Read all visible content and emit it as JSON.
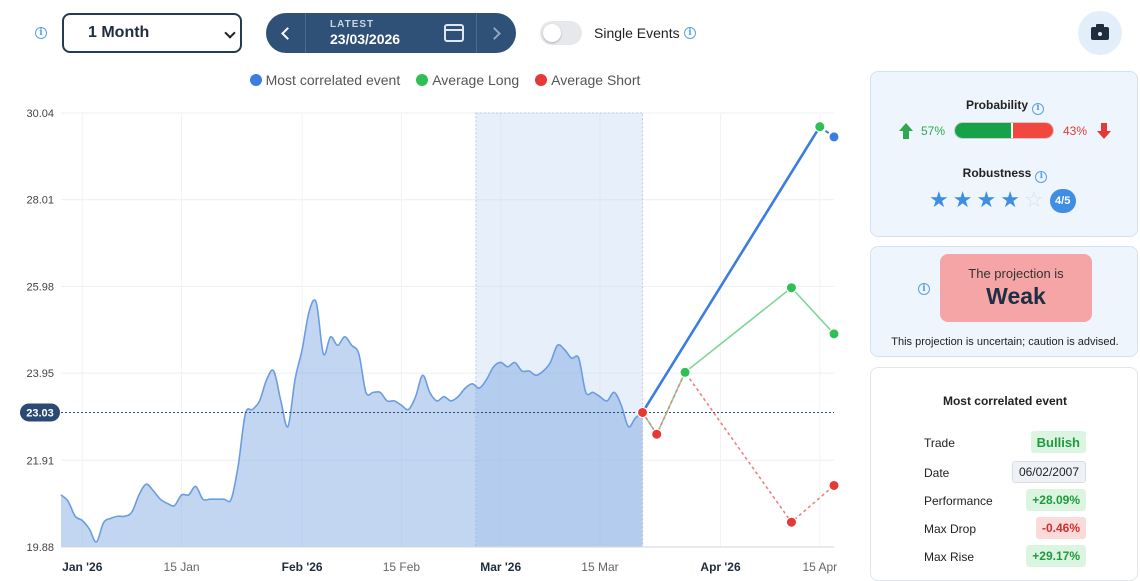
{
  "toolbar": {
    "period": "1 Month",
    "latest_label": "LATEST",
    "latest_date": "23/03/2026",
    "single_events_label": "Single Events"
  },
  "legend": [
    {
      "name": "Most correlated event",
      "color": "#3b7de0"
    },
    {
      "name": "Average Long",
      "color": "#2fbf55"
    },
    {
      "name": "Average Short",
      "color": "#e53935"
    }
  ],
  "probability": {
    "title": "Probability",
    "long_pct_label": "57%",
    "short_pct_label": "43%",
    "long_fraction": 0.57
  },
  "robustness": {
    "title": "Robustness",
    "stars": 4,
    "max": 5,
    "badge": "4/5"
  },
  "projection": {
    "line1": "The projection is",
    "strength": "Weak",
    "note": "This projection is uncertain; caution is advised."
  },
  "correlated_event": {
    "title": "Most correlated event",
    "rows": [
      {
        "label": "Trade",
        "value": "Bullish",
        "style": "bull"
      },
      {
        "label": "Date",
        "value": "06/02/2007",
        "style": "date"
      },
      {
        "label": "Performance",
        "value": "+28.09%",
        "style": "green"
      },
      {
        "label": "Max Drop",
        "value": "-0.46%",
        "style": "red"
      },
      {
        "label": "Max Rise",
        "value": "+29.17%",
        "style": "green"
      }
    ]
  },
  "chart_data": {
    "type": "area",
    "y_ticks": [
      "30.04",
      "28.01",
      "25.98",
      "23.95",
      "21.91",
      "19.88"
    ],
    "y_tick_values": [
      30.04,
      28.01,
      25.98,
      23.95,
      21.91,
      19.88
    ],
    "ylim": [
      19.88,
      30.04
    ],
    "x_ticks": [
      {
        "label": "Jan '26",
        "day": 0,
        "bold": true
      },
      {
        "label": "15 Jan",
        "day": 14,
        "bold": false
      },
      {
        "label": "Feb '26",
        "day": 31,
        "bold": true
      },
      {
        "label": "15 Feb",
        "day": 45,
        "bold": false
      },
      {
        "label": "Mar '26",
        "day": 59,
        "bold": true
      },
      {
        "label": "15 Mar",
        "day": 73,
        "bold": false
      },
      {
        "label": "Apr '26",
        "day": 90,
        "bold": true
      },
      {
        "label": "15 Apr",
        "day": 104,
        "bold": false
      }
    ],
    "xlim": [
      -3,
      106
    ],
    "current_value_label": "23.03",
    "current_value": 23.03,
    "highlight_range": [
      55.5,
      79
    ],
    "history": [
      [
        -3,
        21.1
      ],
      [
        -2,
        20.95
      ],
      [
        -1,
        20.6
      ],
      [
        0,
        20.5
      ],
      [
        1,
        20.3
      ],
      [
        2,
        20.0
      ],
      [
        3,
        20.45
      ],
      [
        4,
        20.55
      ],
      [
        5,
        20.6
      ],
      [
        6,
        20.6
      ],
      [
        7,
        20.7
      ],
      [
        8,
        21.1
      ],
      [
        9,
        21.35
      ],
      [
        10,
        21.2
      ],
      [
        11,
        21.0
      ],
      [
        12,
        20.9
      ],
      [
        13,
        20.85
      ],
      [
        14,
        21.1
      ],
      [
        15,
        21.1
      ],
      [
        16,
        21.3
      ],
      [
        17,
        21.0
      ],
      [
        18,
        21.0
      ],
      [
        19,
        21.0
      ],
      [
        20,
        21.0
      ],
      [
        21,
        21.0
      ],
      [
        22,
        21.8
      ],
      [
        23,
        23.0
      ],
      [
        24,
        23.1
      ],
      [
        25,
        23.3
      ],
      [
        26,
        23.8
      ],
      [
        27,
        24.0
      ],
      [
        28,
        23.3
      ],
      [
        29,
        22.7
      ],
      [
        30,
        23.8
      ],
      [
        31,
        24.5
      ],
      [
        32,
        25.4
      ],
      [
        33,
        25.6
      ],
      [
        34,
        24.4
      ],
      [
        35,
        24.8
      ],
      [
        36,
        24.6
      ],
      [
        37,
        24.8
      ],
      [
        38,
        24.6
      ],
      [
        39,
        24.4
      ],
      [
        40,
        23.5
      ],
      [
        41,
        23.5
      ],
      [
        42,
        23.5
      ],
      [
        43,
        23.3
      ],
      [
        44,
        23.3
      ],
      [
        45,
        23.2
      ],
      [
        46,
        23.1
      ],
      [
        47,
        23.4
      ],
      [
        48,
        23.9
      ],
      [
        49,
        23.5
      ],
      [
        50,
        23.3
      ],
      [
        51,
        23.4
      ],
      [
        52,
        23.3
      ],
      [
        53,
        23.4
      ],
      [
        54,
        23.6
      ],
      [
        55,
        23.7
      ],
      [
        56,
        23.6
      ],
      [
        57,
        23.8
      ],
      [
        58,
        24.1
      ],
      [
        59,
        24.2
      ],
      [
        60,
        24.1
      ],
      [
        61,
        24.2
      ],
      [
        62,
        24.0
      ],
      [
        63,
        24.0
      ],
      [
        64,
        23.9
      ],
      [
        65,
        24.0
      ],
      [
        66,
        24.2
      ],
      [
        67,
        24.6
      ],
      [
        68,
        24.5
      ],
      [
        69,
        24.3
      ],
      [
        70,
        24.3
      ],
      [
        71,
        23.5
      ],
      [
        72,
        23.5
      ],
      [
        73,
        23.4
      ],
      [
        74,
        23.3
      ],
      [
        75,
        23.5
      ],
      [
        76,
        23.2
      ],
      [
        77,
        22.7
      ],
      [
        78,
        22.9
      ],
      [
        79,
        23.03
      ]
    ],
    "series": [
      {
        "name": "Most correlated event",
        "color": "#3b7de0",
        "dashed": false,
        "points": [
          [
            79,
            23.03
          ],
          [
            104,
            29.72
          ],
          [
            106,
            29.48
          ]
        ]
      },
      {
        "name": "Average Long",
        "color": "#2fbf55",
        "dashed": false,
        "points": [
          [
            79,
            23.03
          ],
          [
            81,
            22.52
          ],
          [
            85,
            23.97
          ],
          [
            100,
            25.95
          ],
          [
            106,
            24.87
          ]
        ]
      },
      {
        "name": "Average Short",
        "color": "#e53935",
        "dashed": true,
        "points": [
          [
            79,
            23.03
          ],
          [
            81,
            22.52
          ],
          [
            85,
            23.97
          ],
          [
            100,
            20.46
          ],
          [
            106,
            21.32
          ]
        ]
      }
    ]
  }
}
